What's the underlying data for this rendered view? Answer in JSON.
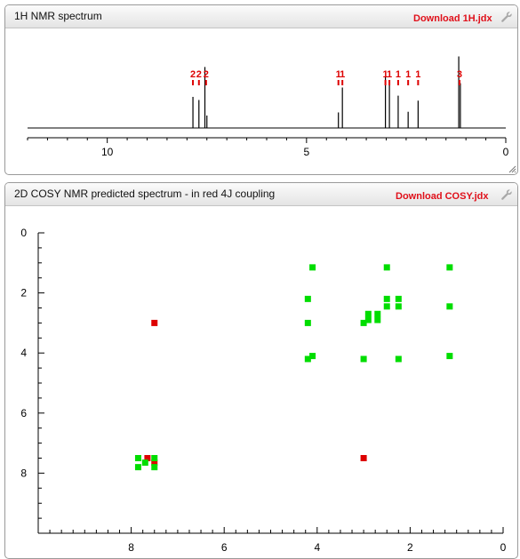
{
  "panel1d": {
    "title": "1H NMR spectrum",
    "download_label": "Download 1H.jdx"
  },
  "panel2d": {
    "title": "2D COSY NMR predicted spectrum - in red 4J coupling",
    "download_label": "Download COSY.jdx"
  },
  "colors": {
    "red": "#dd0000",
    "green": "#00dd00",
    "line": "#000000"
  },
  "chart_data": [
    {
      "type": "line",
      "title": "",
      "xlabel": "",
      "ylabel": "",
      "xlim": [
        12,
        0
      ],
      "x_ticks": [
        10,
        5,
        0
      ],
      "grid": false,
      "peaks": [
        {
          "x": 7.85,
          "h": 0.5
        },
        {
          "x": 7.7,
          "h": 0.45
        },
        {
          "x": 7.55,
          "h": 0.98
        },
        {
          "x": 7.5,
          "h": 0.2
        },
        {
          "x": 4.2,
          "h": 0.25
        },
        {
          "x": 4.1,
          "h": 0.65
        },
        {
          "x": 3.02,
          "h": 0.82
        },
        {
          "x": 2.92,
          "h": 0.77
        },
        {
          "x": 2.7,
          "h": 0.52
        },
        {
          "x": 2.45,
          "h": 0.26
        },
        {
          "x": 2.2,
          "h": 0.44
        },
        {
          "x": 1.18,
          "h": 1.15
        },
        {
          "x": 1.14,
          "h": 0.72
        }
      ],
      "integrals": [
        {
          "x": 7.85,
          "label": "2"
        },
        {
          "x": 7.7,
          "label": "2"
        },
        {
          "x": 7.52,
          "label": "2"
        },
        {
          "x": 4.2,
          "label": "1"
        },
        {
          "x": 4.1,
          "label": "1"
        },
        {
          "x": 3.02,
          "label": "1"
        },
        {
          "x": 2.92,
          "label": "1"
        },
        {
          "x": 2.7,
          "label": "1"
        },
        {
          "x": 2.45,
          "label": "1"
        },
        {
          "x": 2.2,
          "label": "1"
        },
        {
          "x": 1.16,
          "label": "3"
        }
      ]
    },
    {
      "type": "scatter",
      "title": "",
      "xlabel": "",
      "ylabel": "",
      "xlim": [
        10,
        0
      ],
      "ylim": [
        0,
        10
      ],
      "x_ticks": [
        8,
        6,
        4,
        2,
        0
      ],
      "y_ticks": [
        0,
        2,
        4,
        6,
        8
      ],
      "grid": false,
      "series": [
        {
          "color": "red",
          "points": [
            [
              7.5,
              3.0
            ],
            [
              7.65,
              7.5
            ],
            [
              7.5,
              7.65
            ],
            [
              3.0,
              7.5
            ]
          ]
        },
        {
          "color": "green",
          "points": [
            [
              7.85,
              7.5
            ],
            [
              7.85,
              7.8
            ],
            [
              7.7,
              7.65
            ],
            [
              7.5,
              7.5
            ],
            [
              7.5,
              7.8
            ],
            [
              4.2,
              2.2
            ],
            [
              4.2,
              3.0
            ],
            [
              4.2,
              4.2
            ],
            [
              4.1,
              1.15
            ],
            [
              4.1,
              4.1
            ],
            [
              3.0,
              3.0
            ],
            [
              3.0,
              4.2
            ],
            [
              2.9,
              2.7
            ],
            [
              2.9,
              2.9
            ],
            [
              2.7,
              2.7
            ],
            [
              2.7,
              2.9
            ],
            [
              2.5,
              1.15
            ],
            [
              2.5,
              2.2
            ],
            [
              2.5,
              2.45
            ],
            [
              2.25,
              2.2
            ],
            [
              2.25,
              2.45
            ],
            [
              2.25,
              4.2
            ],
            [
              1.15,
              1.15
            ],
            [
              1.15,
              2.45
            ],
            [
              1.15,
              4.1
            ]
          ]
        }
      ]
    }
  ]
}
